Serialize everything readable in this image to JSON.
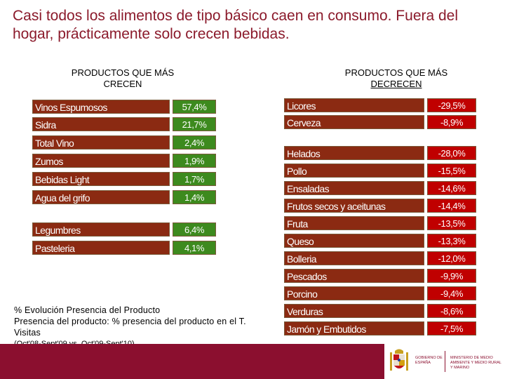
{
  "title": "Casi todos los alimentos de tipo básico caen en consumo. Fuera del hogar, prácticamente solo crecen bebidas.",
  "left": {
    "heading_line1": "PRODUCTOS QUE MÁS",
    "heading_line2": "CRECEN",
    "items": [
      {
        "label": "Vinos Espumosos",
        "value": "57,4%"
      },
      {
        "label": "Sidra",
        "value": "21,7%"
      },
      {
        "label": "Total Vino",
        "value": "2,4%"
      },
      {
        "label": "Zumos",
        "value": "1,9%"
      },
      {
        "label": "Bebidas Light",
        "value": "1,7%"
      },
      {
        "label": "Agua del grifo",
        "value": "1,4%"
      },
      {
        "label": "Legumbres",
        "value": "6,4%"
      },
      {
        "label": "Pasteleria",
        "value": "4,1%"
      }
    ]
  },
  "right": {
    "heading_line1": "PRODUCTOS QUE MÁS",
    "heading_line2": "DECRECEN",
    "items": [
      {
        "label": "Licores",
        "value": "-29,5%"
      },
      {
        "label": "Cerveza",
        "value": "-8,9%"
      },
      {
        "label": "Helados",
        "value": "-28,0%"
      },
      {
        "label": "Pollo",
        "value": "-15,5%"
      },
      {
        "label": "Ensaladas",
        "value": "-14,6%"
      },
      {
        "label": "Frutos secos y aceitunas",
        "value": "-14,4%"
      },
      {
        "label": "Fruta",
        "value": "-13,5%"
      },
      {
        "label": "Queso",
        "value": "-13,3%"
      },
      {
        "label": "Bolleria",
        "value": "-12,0%"
      },
      {
        "label": "Pescados",
        "value": "-9,9%"
      },
      {
        "label": "Porcino",
        "value": "-9,4%"
      },
      {
        "label": "Verduras",
        "value": "-8,6%"
      },
      {
        "label": "Jamón y Embutidos",
        "value": "-7,5%"
      }
    ]
  },
  "note": {
    "line1": "% Evolución Presencia del Producto",
    "line2": "Presencia del producto: % presencia del producto en el T. Visitas",
    "period": "(Oct'08-Sept'09 vs. Oct'09-Sept'10)"
  },
  "logo": {
    "gov": "GOBIERNO DE ESPAÑA",
    "ministry": "MINISTERIO DE MEDIO AMBIENTE Y MEDIO RURAL Y MARINO"
  },
  "colors": {
    "label_bg": "#8b2a12",
    "grow_bg": "#3d8a1e",
    "drop_bg": "#c00000",
    "footer": "#8b0f2f"
  }
}
